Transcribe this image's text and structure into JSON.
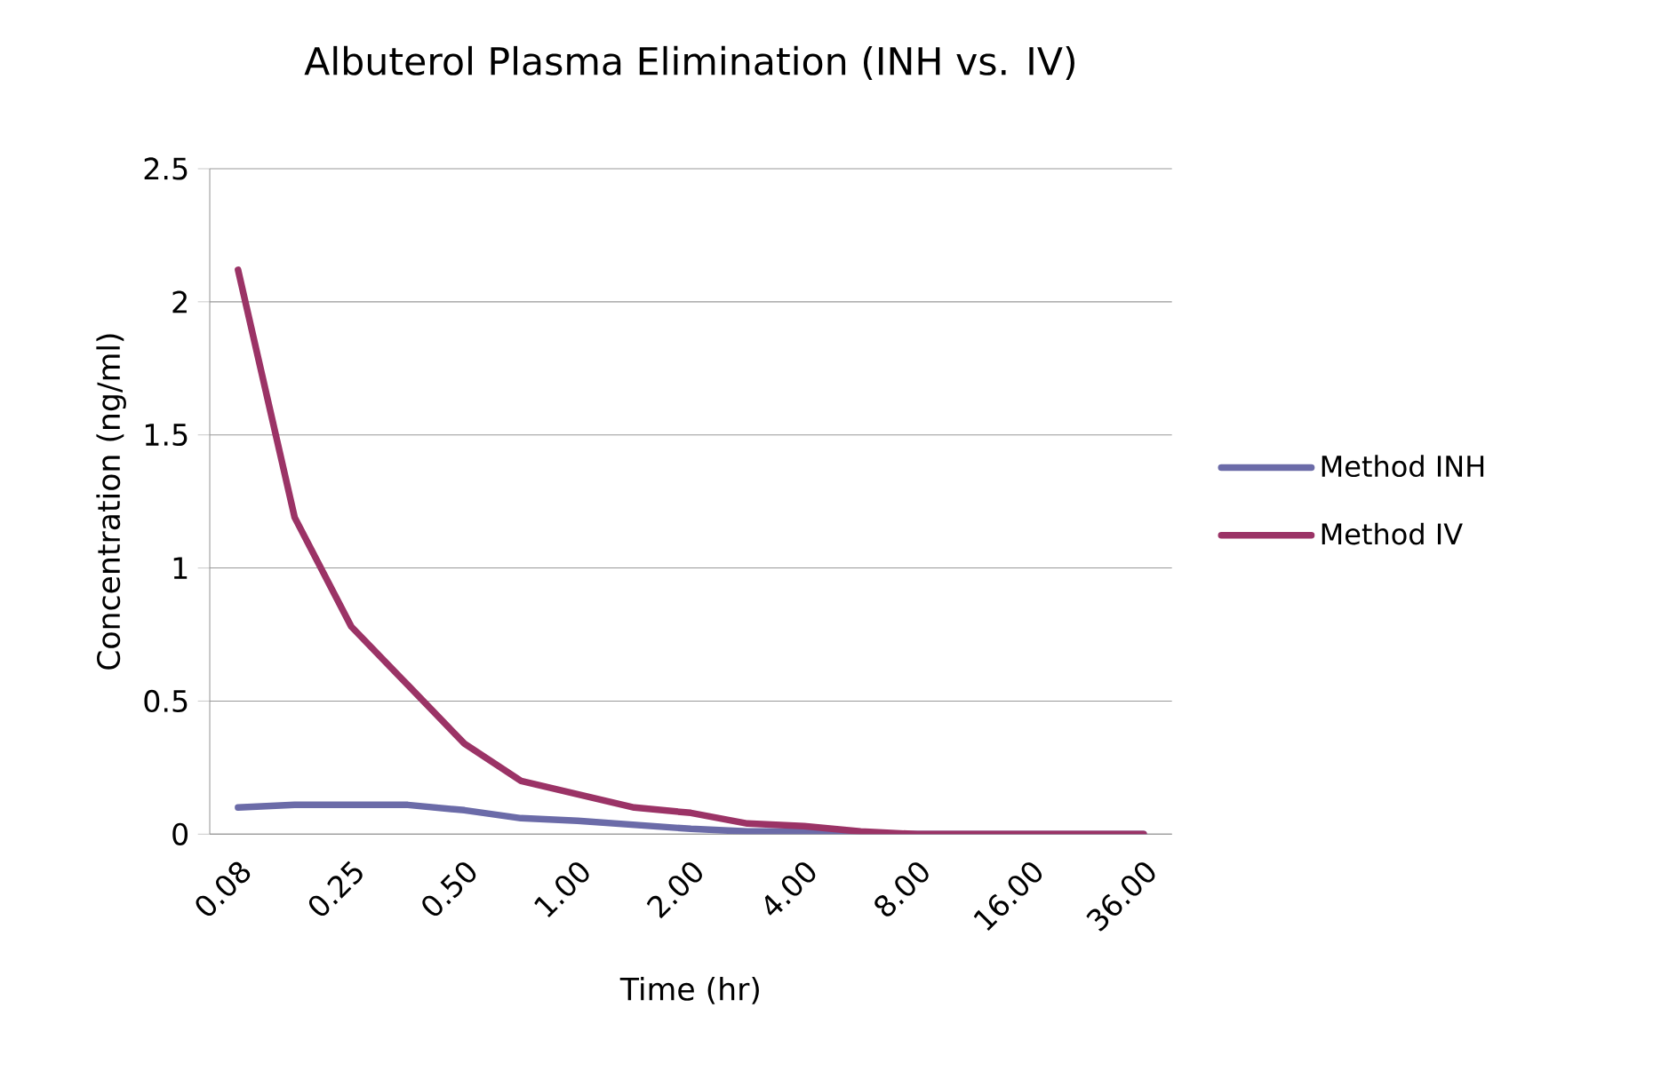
{
  "chart_data": {
    "type": "line",
    "title": "Albuterol Plasma Elimination (INH vs. IV)",
    "xlabel": "Time (hr)",
    "ylabel": "Concentration (ng/ml)",
    "categories": [
      "0.08",
      null,
      "0.25",
      null,
      "0.50",
      null,
      "1.00",
      null,
      "2.00",
      null,
      "4.00",
      null,
      "8.00",
      null,
      "16.00",
      null,
      "36.00"
    ],
    "series": [
      {
        "name": "Method INH",
        "color": "#6b6ba8",
        "values": [
          0.1,
          0.11,
          0.11,
          0.11,
          0.09,
          0.06,
          0.05,
          0.035,
          0.02,
          0.01,
          0.01,
          0,
          0,
          0,
          0,
          0,
          0
        ]
      },
      {
        "name": "Method IV",
        "color": "#9b3366",
        "values": [
          2.12,
          1.19,
          0.78,
          0.56,
          0.34,
          0.2,
          0.15,
          0.1,
          0.08,
          0.04,
          0.03,
          0.01,
          0,
          0,
          0,
          0,
          0
        ]
      }
    ],
    "ylim": [
      0,
      2.5
    ],
    "yticks": [
      0,
      0.5,
      1,
      1.5,
      2,
      2.5
    ],
    "grid": "y",
    "legend": "right",
    "marker": "none",
    "line_style": "solid"
  }
}
